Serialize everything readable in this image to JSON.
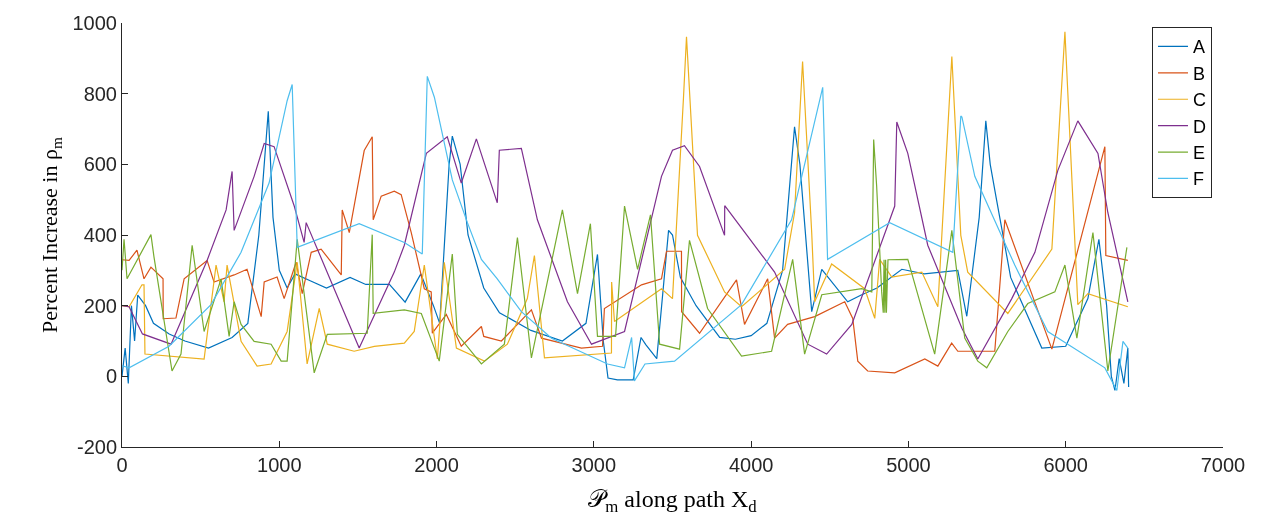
{
  "chart_data": {
    "type": "line",
    "xlabel": "𝒫$_{m}$ along path X$_{d}$",
    "ylabel": "Percent Increase in ρ$_{m}$",
    "xlim": [
      0,
      7000
    ],
    "ylim": [
      -200,
      1000
    ],
    "xticks": [
      0,
      1000,
      2000,
      3000,
      4000,
      5000,
      6000,
      7000
    ],
    "yticks": [
      -200,
      0,
      200,
      400,
      600,
      800,
      1000
    ],
    "legend": "top right",
    "marker": "none",
    "line_style": "solid",
    "series": [
      {
        "name": "A",
        "color": "#0072bd",
        "x": [
          0,
          20,
          40,
          60,
          80,
          100,
          150,
          200,
          300,
          400,
          550,
          700,
          800,
          870,
          930,
          960,
          1000,
          1050,
          1100,
          1200,
          1300,
          1450,
          1550,
          1700,
          1800,
          1900,
          1980,
          2020,
          2080,
          2100,
          2150,
          2200,
          2300,
          2400,
          2600,
          2800,
          2950,
          3023,
          3060,
          3090,
          3150,
          3250,
          3300,
          3330,
          3400,
          3475,
          3500,
          3550,
          3650,
          3800,
          3900,
          4000,
          4100,
          4200,
          4276,
          4310,
          4385,
          4449,
          4614,
          4700,
          4800,
          4958,
          5100,
          5314,
          5371,
          5450,
          5492,
          5520,
          5560,
          5650,
          5848,
          6000,
          6141,
          6211,
          6260,
          6290,
          6313,
          6340,
          6370,
          6395,
          6400
        ],
        "values": [
          0,
          80,
          -20,
          200,
          100,
          230,
          200,
          150,
          120,
          100,
          80,
          110,
          150,
          400,
          750,
          450,
          300,
          250,
          290,
          270,
          250,
          280,
          260,
          260,
          210,
          290,
          200,
          150,
          600,
          680,
          600,
          400,
          250,
          180,
          130,
          100,
          150,
          345,
          100,
          -5,
          -10,
          -10,
          110,
          90,
          50,
          413,
          400,
          280,
          200,
          110,
          105,
          115,
          150,
          300,
          706,
          600,
          183,
          303,
          211,
          230,
          250,
          303,
          290,
          300,
          170,
          450,
          723,
          600,
          500,
          280,
          80,
          85,
          220,
          388,
          200,
          0,
          -40,
          50,
          -20,
          80,
          -30
        ]
      },
      {
        "name": "B",
        "color": "#d95319",
        "x": [
          0,
          45,
          95,
          140,
          184,
          261,
          262,
          343,
          395,
          541,
          585,
          713,
          795,
          885,
          904,
          986,
          1031,
          1107,
          1146,
          1203,
          1266,
          1394,
          1400,
          1445,
          1540,
          1591,
          1597,
          1648,
          1731,
          1775,
          1839,
          1922,
          1966,
          1973,
          2062,
          2157,
          2285,
          2300,
          2412,
          2603,
          2667,
          2921,
          3055,
          3067,
          3303,
          3430,
          3462,
          3557,
          3558,
          3672,
          3907,
          3958,
          4105,
          4149,
          4232,
          4404,
          4595,
          4646,
          4678,
          4741,
          4913,
          5104,
          5187,
          5275,
          5314,
          5466,
          5549,
          5613,
          5912,
          6249,
          6255,
          6395
        ],
        "values": [
          330,
          328,
          357,
          276,
          309,
          276,
          163,
          165,
          276,
          328,
          267,
          287,
          303,
          169,
          267,
          281,
          220,
          323,
          234,
          351,
          360,
          287,
          471,
          407,
          639,
          678,
          443,
          510,
          524,
          514,
          407,
          248,
          239,
          122,
          175,
          85,
          141,
          113,
          100,
          188,
          108,
          80,
          85,
          192,
          259,
          276,
          354,
          354,
          183,
          122,
          273,
          147,
          276,
          108,
          147,
          169,
          211,
          164,
          43,
          15,
          10,
          49,
          29,
          94,
          71,
          71,
          71,
          443,
          77,
          650,
          342,
          328
        ]
      },
      {
        "name": "C",
        "color": "#edb120",
        "x": [
          0,
          45,
          127,
          140,
          146,
          522,
          598,
          649,
          668,
          757,
          859,
          948,
          1050,
          1114,
          1177,
          1254,
          1305,
          1476,
          1604,
          1795,
          1858,
          1922,
          2005,
          2049,
          2126,
          2304,
          2450,
          2577,
          2622,
          2686,
          3112,
          3113,
          3131,
          3430,
          3500,
          3570,
          3589,
          3659,
          3831,
          3939,
          4213,
          4276,
          4327,
          4385,
          4404,
          4512,
          4722,
          4786,
          4817,
          4894,
          5085,
          5187,
          5276,
          5333,
          5377,
          5632,
          5912,
          5995,
          6077,
          6141,
          6395
        ],
        "values": [
          200,
          197,
          259,
          259,
          63,
          49,
          315,
          211,
          315,
          99,
          29,
          35,
          127,
          323,
          35,
          192,
          91,
          71,
          85,
          94,
          127,
          315,
          49,
          323,
          80,
          43,
          91,
          220,
          342,
          52,
          66,
          267,
          155,
          248,
          220,
          790,
          961,
          399,
          239,
          197,
          303,
          463,
          891,
          407,
          211,
          318,
          248,
          164,
          331,
          281,
          295,
          197,
          905,
          399,
          295,
          178,
          360,
          975,
          203,
          234,
          197
        ]
      },
      {
        "name": "D",
        "color": "#7e2f8e",
        "x": [
          0,
          45,
          130,
          312,
          541,
          662,
          700,
          713,
          840,
          904,
          967,
          1095,
          1158,
          1171,
          1508,
          1731,
          1795,
          1935,
          2068,
          2157,
          2253,
          2386,
          2399,
          2539,
          2641,
          2832,
          2985,
          3195,
          3430,
          3500,
          3576,
          3672,
          3831,
          3832,
          4149,
          4360,
          4480,
          4640,
          4913,
          4926,
          4996,
          5123,
          5340,
          5441,
          5657,
          5804,
          5950,
          6077,
          6205,
          6268,
          6395
        ],
        "values": [
          200,
          197,
          120,
          91,
          328,
          471,
          580,
          413,
          566,
          659,
          650,
          482,
          379,
          435,
          80,
          295,
          371,
          631,
          678,
          547,
          672,
          491,
          640,
          645,
          443,
          211,
          91,
          127,
          566,
          640,
          653,
          594,
          399,
          483,
          295,
          91,
          63,
          147,
          482,
          720,
          631,
          371,
          136,
          49,
          220,
          351,
          583,
          723,
          631,
          463,
          211
        ]
      },
      {
        "name": "E",
        "color": "#77ac30",
        "x": [
          0,
          13,
          32,
          184,
          203,
          318,
          375,
          446,
          522,
          630,
          681,
          713,
          757,
          840,
          948,
          1012,
          1050,
          1114,
          1222,
          1305,
          1559,
          1591,
          1597,
          1795,
          1903,
          2017,
          2100,
          2132,
          2285,
          2431,
          2514,
          2603,
          2800,
          2896,
          2978,
          3023,
          3138,
          3195,
          3278,
          3360,
          3418,
          3545,
          3608,
          3723,
          3939,
          4130,
          4264,
          4340,
          4449,
          4703,
          4767,
          4779,
          4798,
          4830,
          4840,
          4845,
          4850,
          4855,
          4860,
          4870,
          4996,
          5167,
          5276,
          5358,
          5441,
          5498,
          5632,
          5759,
          5931,
          5995,
          6071,
          6173,
          6268,
          6389
        ],
        "values": [
          300,
          388,
          276,
          401,
          339,
          15,
          63,
          371,
          127,
          276,
          113,
          211,
          147,
          99,
          91,
          43,
          43,
          388,
          10,
          119,
          122,
          401,
          178,
          188,
          178,
          43,
          346,
          119,
          35,
          91,
          393,
          52,
          471,
          234,
          432,
          113,
          113,
          482,
          303,
          457,
          91,
          77,
          385,
          192,
          57,
          71,
          331,
          63,
          231,
          248,
          239,
          670,
          538,
          239,
          180,
          330,
          180,
          330,
          180,
          330,
          331,
          63,
          413,
          108,
          43,
          24,
          127,
          206,
          239,
          315,
          108,
          407,
          15,
          365
        ]
      },
      {
        "name": "F",
        "color": "#4dbeee",
        "x": [
          0,
          45,
          299,
          566,
          757,
          935,
          1050,
          1082,
          1114,
          1508,
          1795,
          1909,
          1941,
          1986,
          2100,
          2196,
          2285,
          2386,
          2539,
          2731,
          3087,
          3195,
          3240,
          3258,
          3325,
          3513,
          3939,
          4257,
          4455,
          4486,
          4881,
          5282,
          5333,
          5340,
          5422,
          5676,
          5886,
          6249,
          6325,
          6364,
          6395
        ],
        "values": [
          30,
          24,
          85,
          203,
          351,
          547,
          780,
          826,
          365,
          432,
          379,
          346,
          849,
          790,
          556,
          435,
          331,
          276,
          183,
          108,
          35,
          24,
          110,
          -13,
          35,
          43,
          203,
          443,
          818,
          331,
          435,
          351,
          737,
          734,
          566,
          315,
          127,
          24,
          -40,
          99,
          80
        ]
      }
    ]
  }
}
